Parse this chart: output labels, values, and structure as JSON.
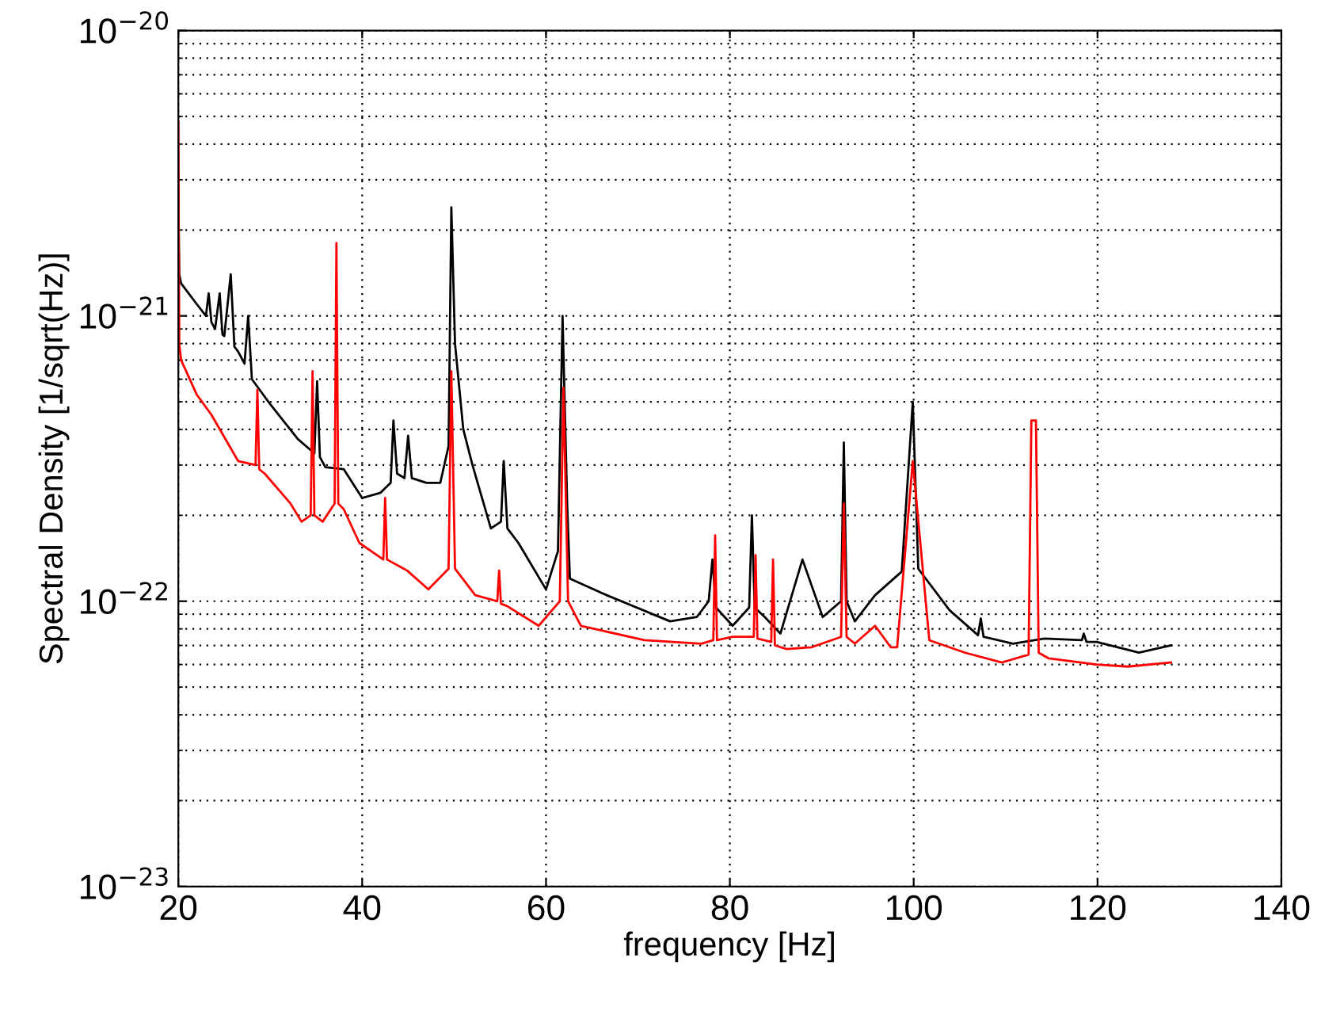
{
  "chart_data": {
    "type": "line",
    "xlabel": "frequency [Hz]",
    "ylabel": "Spectral Density [1/sqrt(Hz)]",
    "log": "y",
    "grid": true,
    "xlim": [
      20,
      140
    ],
    "xticks": [
      20,
      40,
      60,
      80,
      100,
      120,
      140
    ],
    "ylim": [
      1e-23,
      1e-20
    ],
    "yticks": [
      {
        "value": 1e-23,
        "label": "10$^{−23}$"
      },
      {
        "value": 1e-22,
        "label": "10$^{−22}$"
      },
      {
        "value": 1e-21,
        "label": "10$^{−21}$"
      },
      {
        "value": 1e-20,
        "label": "10$^{−20}$"
      }
    ],
    "series": [
      {
        "color": "#000000",
        "x": [
          20,
          20.1,
          20.3,
          22,
          23,
          23.3,
          23.6,
          24,
          24.5,
          24.8,
          25,
          25.7,
          26.1,
          26.5,
          27.2,
          27.6,
          28,
          30,
          33,
          34.8,
          35.1,
          35.4,
          36,
          38,
          40,
          42,
          43.1,
          43.4,
          43.8,
          44.6,
          45,
          45.4,
          47,
          48.5,
          49.4,
          49.7,
          50.1,
          51,
          52,
          54,
          55.1,
          55.4,
          55.8,
          57,
          60,
          61.3,
          61.8,
          62.3,
          62.6,
          66.6,
          73.5,
          76.4,
          77.7,
          78.1,
          78.5,
          80.3,
          82.1,
          82.4,
          82.7,
          83.8,
          85.5,
          87.9,
          90.1,
          92.1,
          92.4,
          92.7,
          93.6,
          95.8,
          98.7,
          99.9,
          100.5,
          103.9,
          107,
          107.3,
          107.6,
          110.8,
          114.2,
          118.3,
          118.5,
          118.8,
          119.9,
          124.5,
          128
        ],
        "values": [
          2.4e-21,
          1.4e-21,
          1.3e-21,
          1.1e-21,
          1e-21,
          1.2e-21,
          9.5e-22,
          9e-22,
          1.2e-21,
          8.6e-22,
          8.5e-22,
          1.4e-21,
          7.8e-22,
          7.5e-22,
          6.8e-22,
          1e-21,
          6e-22,
          4.9e-22,
          3.7e-22,
          3.3e-22,
          5.9e-22,
          3.2e-22,
          2.95e-22,
          2.9e-22,
          2.3e-22,
          2.4e-22,
          2.6e-22,
          4.3e-22,
          2.8e-22,
          2.7e-22,
          3.8e-22,
          2.7e-22,
          2.6e-22,
          2.6e-22,
          3.5e-22,
          2.4e-21,
          8e-22,
          4e-22,
          3e-22,
          1.8e-22,
          1.9e-22,
          3.1e-22,
          1.8e-22,
          1.6e-22,
          1.1e-22,
          1.5e-22,
          1e-21,
          2.2e-22,
          1.2e-22,
          1.05e-22,
          8.5e-23,
          8.8e-23,
          1e-22,
          1.4e-22,
          9.5e-23,
          8.2e-23,
          9.5e-23,
          2e-22,
          9.5e-23,
          8.8e-23,
          7.7e-23,
          1.4e-22,
          8.8e-23,
          1e-22,
          3.6e-22,
          1e-22,
          8.5e-23,
          1.05e-22,
          1.27e-22,
          5e-22,
          1.3e-22,
          9.3e-23,
          7.6e-23,
          8.7e-23,
          7.5e-23,
          7.1e-23,
          7.4e-23,
          7.3e-23,
          7.7e-23,
          7.2e-23,
          7.2e-23,
          6.6e-23,
          7e-23
        ]
      },
      {
        "color": "#ff0000",
        "x": [
          20,
          20.1,
          20.3,
          22,
          23.6,
          26.5,
          28.4,
          28.6,
          28.8,
          29.4,
          32.2,
          33.4,
          34.4,
          34.6,
          34.8,
          35.7,
          37,
          37.2,
          37.4,
          38,
          39.7,
          42.3,
          42.5,
          42.7,
          44.9,
          47.2,
          49.4,
          49.7,
          50.1,
          52.3,
          54.7,
          54.9,
          55.1,
          55.8,
          59.2,
          61.5,
          61.9,
          62.4,
          63.8,
          70.7,
          76.9,
          78.2,
          78.4,
          78.6,
          80.3,
          82.6,
          82.8,
          83,
          84.5,
          84.7,
          84.9,
          86.2,
          88.9,
          92.1,
          92.4,
          92.7,
          93.6,
          95.8,
          97.5,
          98.2,
          99.9,
          101.7,
          105.6,
          109.6,
          112.5,
          112.8,
          113.3,
          113.6,
          114.7,
          119.9,
          123.3,
          128
        ],
        "values": [
          4.8e-21,
          8e-22,
          7e-22,
          5.3e-22,
          4.5e-22,
          3.1e-22,
          3e-22,
          5.5e-22,
          2.9e-22,
          2.8e-22,
          2.2e-22,
          1.9e-22,
          2e-22,
          6.4e-22,
          2e-22,
          1.9e-22,
          2.2e-22,
          1.8e-21,
          2.2e-22,
          2.1e-22,
          1.6e-22,
          1.4e-22,
          2.3e-22,
          1.4e-22,
          1.28e-22,
          1.1e-22,
          1.3e-22,
          6.4e-22,
          1.3e-22,
          1.05e-22,
          1e-22,
          1.28e-22,
          9.8e-23,
          9.6e-23,
          8.2e-23,
          1e-22,
          5.6e-22,
          1e-22,
          8.2e-23,
          7.3e-23,
          7.1e-23,
          7.3e-23,
          1.7e-22,
          7.3e-23,
          7.5e-23,
          7.5e-23,
          1.45e-22,
          7.4e-23,
          7.2e-23,
          1.4e-22,
          7e-23,
          6.8e-23,
          6.9e-23,
          7.5e-23,
          2.2e-22,
          7.5e-23,
          7.1e-23,
          8.2e-23,
          6.9e-23,
          6.9e-23,
          3.1e-22,
          7.3e-23,
          6.6e-23,
          6.1e-23,
          6.5e-23,
          4.3e-22,
          4.3e-22,
          6.6e-23,
          6.3e-23,
          6e-23,
          5.9e-23,
          6.1e-23
        ]
      }
    ]
  }
}
